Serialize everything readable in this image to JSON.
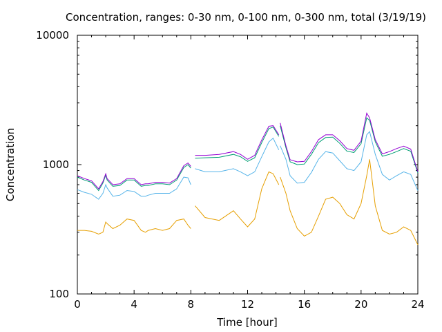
{
  "chart_data": {
    "type": "line",
    "title": "Concentration, ranges: 0-30 nm, 0-100 nm, 0-300 nm, total (3/19/19)",
    "xlabel": "Time [hour]",
    "ylabel": "Concentration",
    "xlim": [
      0,
      24
    ],
    "ylim": [
      100,
      10000
    ],
    "yscale": "log",
    "grid": false,
    "legend": "none",
    "xticks": [
      "0",
      "4",
      "8",
      "12",
      "16",
      "20",
      "24"
    ],
    "yticks": [
      "100",
      "1000",
      "10000"
    ],
    "xtick_values": [
      0,
      4,
      8,
      12,
      16,
      20,
      24
    ],
    "ytick_values": [
      100,
      1000,
      10000
    ],
    "gaps": [
      [
        8.0,
        8.3
      ],
      [
        14.2,
        14.3
      ]
    ],
    "x": [
      0,
      0.5,
      1,
      1.5,
      1.8,
      2.0,
      2.1,
      2.5,
      3.0,
      3.5,
      4.0,
      4.5,
      4.8,
      5.0,
      5.5,
      6.0,
      6.5,
      7.0,
      7.5,
      7.8,
      8.0,
      8.3,
      9.0,
      10.0,
      11.0,
      11.5,
      12.0,
      12.5,
      13.0,
      13.5,
      13.8,
      14.2,
      14.3,
      14.7,
      15.0,
      15.5,
      16.0,
      16.5,
      17.0,
      17.5,
      18.0,
      18.5,
      19.0,
      19.5,
      20.0,
      20.4,
      20.6,
      21.0,
      21.5,
      22.0,
      22.5,
      23.0,
      23.5,
      24.0
    ],
    "series": [
      {
        "color": "#e69f00",
        "values": [
          310,
          310,
          305,
          290,
          300,
          360,
          350,
          320,
          340,
          380,
          370,
          310,
          300,
          310,
          320,
          310,
          320,
          370,
          380,
          340,
          320,
          480,
          390,
          370,
          440,
          380,
          330,
          380,
          650,
          880,
          850,
          700,
          800,
          600,
          440,
          320,
          280,
          300,
          400,
          540,
          560,
          500,
          410,
          380,
          500,
          820,
          1100,
          480,
          310,
          290,
          300,
          330,
          310,
          240
        ]
      },
      {
        "color": "#56b4e9",
        "values": [
          640,
          610,
          590,
          540,
          600,
          700,
          660,
          570,
          580,
          630,
          620,
          570,
          570,
          580,
          600,
          600,
          600,
          650,
          800,
          790,
          700,
          930,
          880,
          880,
          930,
          880,
          820,
          880,
          1150,
          1500,
          1600,
          1300,
          1400,
          1100,
          820,
          720,
          730,
          870,
          1100,
          1260,
          1230,
          1070,
          930,
          900,
          1050,
          1700,
          1800,
          1200,
          840,
          760,
          820,
          880,
          840,
          630
        ]
      },
      {
        "color": "#009e73",
        "values": [
          800,
          760,
          730,
          630,
          720,
          830,
          760,
          680,
          690,
          760,
          760,
          680,
          690,
          690,
          710,
          710,
          700,
          760,
          950,
          1000,
          940,
          1120,
          1130,
          1140,
          1200,
          1150,
          1060,
          1130,
          1480,
          1900,
          1950,
          1650,
          2000,
          1350,
          1050,
          1000,
          1010,
          1200,
          1480,
          1620,
          1630,
          1460,
          1270,
          1240,
          1450,
          2300,
          2200,
          1500,
          1160,
          1200,
          1260,
          1330,
          1270,
          860
        ]
      },
      {
        "color": "#9400d3",
        "values": [
          820,
          780,
          750,
          650,
          740,
          850,
          780,
          700,
          710,
          780,
          780,
          700,
          710,
          710,
          730,
          730,
          720,
          780,
          980,
          1030,
          970,
          1180,
          1180,
          1200,
          1260,
          1200,
          1100,
          1180,
          1550,
          1980,
          2000,
          1700,
          2100,
          1400,
          1090,
          1050,
          1060,
          1260,
          1560,
          1700,
          1700,
          1530,
          1330,
          1290,
          1520,
          2500,
          2300,
          1560,
          1210,
          1260,
          1330,
          1390,
          1320,
          880
        ]
      }
    ]
  }
}
